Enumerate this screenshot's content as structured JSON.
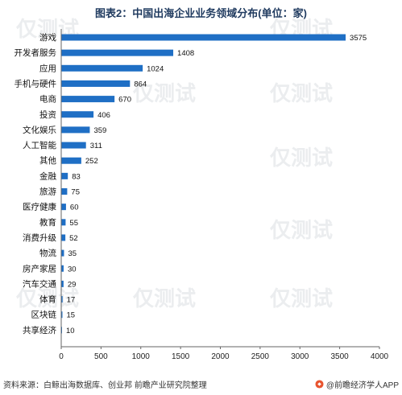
{
  "chart_data": {
    "type": "bar",
    "orientation": "horizontal",
    "title": "图表2：中国出海企业业务领域分布(单位：家)",
    "categories": [
      "游戏",
      "开发者服务",
      "应用",
      "手机与硬件",
      "电商",
      "投资",
      "文化娱乐",
      "人工智能",
      "其他",
      "金融",
      "旅游",
      "医疗健康",
      "教育",
      "消费升级",
      "物流",
      "房产家居",
      "汽车交通",
      "体育",
      "区块链",
      "共享经济"
    ],
    "values": [
      3575,
      1408,
      1024,
      864,
      670,
      406,
      359,
      311,
      252,
      83,
      75,
      60,
      55,
      52,
      35,
      30,
      29,
      17,
      15,
      10
    ],
    "xlim": [
      0,
      4000
    ],
    "xticks": [
      0,
      500,
      1000,
      1500,
      2000,
      2500,
      3000,
      3500,
      4000
    ],
    "grid": false,
    "bar_color": "#1f6fc5",
    "source": "资料来源：白鲸出海数据库、创业邦 前瞻产业研究院整理",
    "brand": "@前瞻经济学人APP",
    "watermark": "仅测试"
  }
}
